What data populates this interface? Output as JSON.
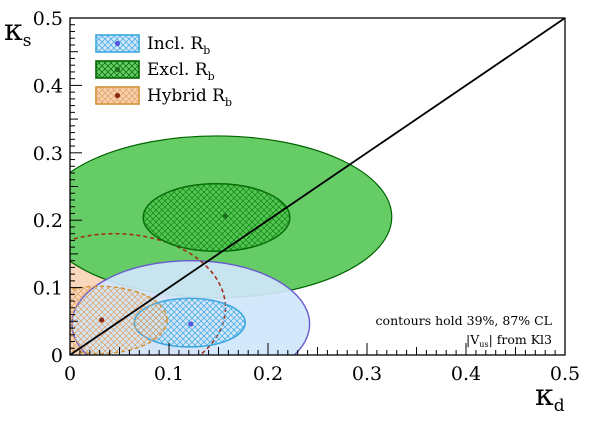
{
  "chart_data": {
    "type": "scatter",
    "xlabel": "κ",
    "xlabel_sub": "d",
    "ylabel": "κ",
    "ylabel_sub": "s",
    "xlim": [
      0,
      0.5
    ],
    "ylim": [
      0,
      0.5
    ],
    "x_ticks": [
      "0",
      "0.1",
      "0.2",
      "0.3",
      "0.4",
      "0.5"
    ],
    "y_ticks": [
      "0",
      "0.1",
      "0.2",
      "0.3",
      "0.4",
      "0.5"
    ],
    "grid": false,
    "legend_position": "top-left",
    "legend": [
      {
        "label": "Incl. R",
        "sub": "b"
      },
      {
        "label": "Excl. R",
        "sub": "b"
      },
      {
        "label": "Hybrid R",
        "sub": "b"
      }
    ],
    "series": [
      {
        "name": "Incl. R_b",
        "color": "#3aa7e0",
        "fill": "#cfe6fb",
        "center": [
          0.122,
          0.046
        ],
        "inner_contour": {
          "cx": 0.121,
          "cy": 0.048,
          "rx": 0.056,
          "ry": 0.036
        },
        "outer_contour": {
          "cx": 0.122,
          "cy": 0.046,
          "rx": 0.12,
          "ry": 0.094
        }
      },
      {
        "name": "Excl. R_b",
        "color": "#006400",
        "fill": "#66cc66",
        "center": [
          0.157,
          0.206
        ],
        "inner_contour": {
          "cx": 0.148,
          "cy": 0.204,
          "rx": 0.074,
          "ry": 0.05
        },
        "outer_contour": {
          "cx": 0.148,
          "cy": 0.205,
          "rx": 0.177,
          "ry": 0.12
        }
      },
      {
        "name": "Hybrid R_b",
        "color": "#b07a26",
        "fill": "#f8d0b0",
        "center": [
          0.032,
          0.052
        ],
        "inner_contour": {
          "cx": 0.03,
          "cy": 0.052,
          "rx": 0.068,
          "ry": 0.05
        },
        "outer_contour": {
          "cx": 0.045,
          "cy": 0.07,
          "rx": 0.112,
          "ry": 0.11
        }
      }
    ],
    "diagonal_line": {
      "from": [
        0,
        0
      ],
      "to": [
        0.5,
        0.5
      ]
    },
    "annotations": [
      "contours hold 39%, 87% CL",
      "|V",
      "us",
      "| from Kl3"
    ]
  }
}
